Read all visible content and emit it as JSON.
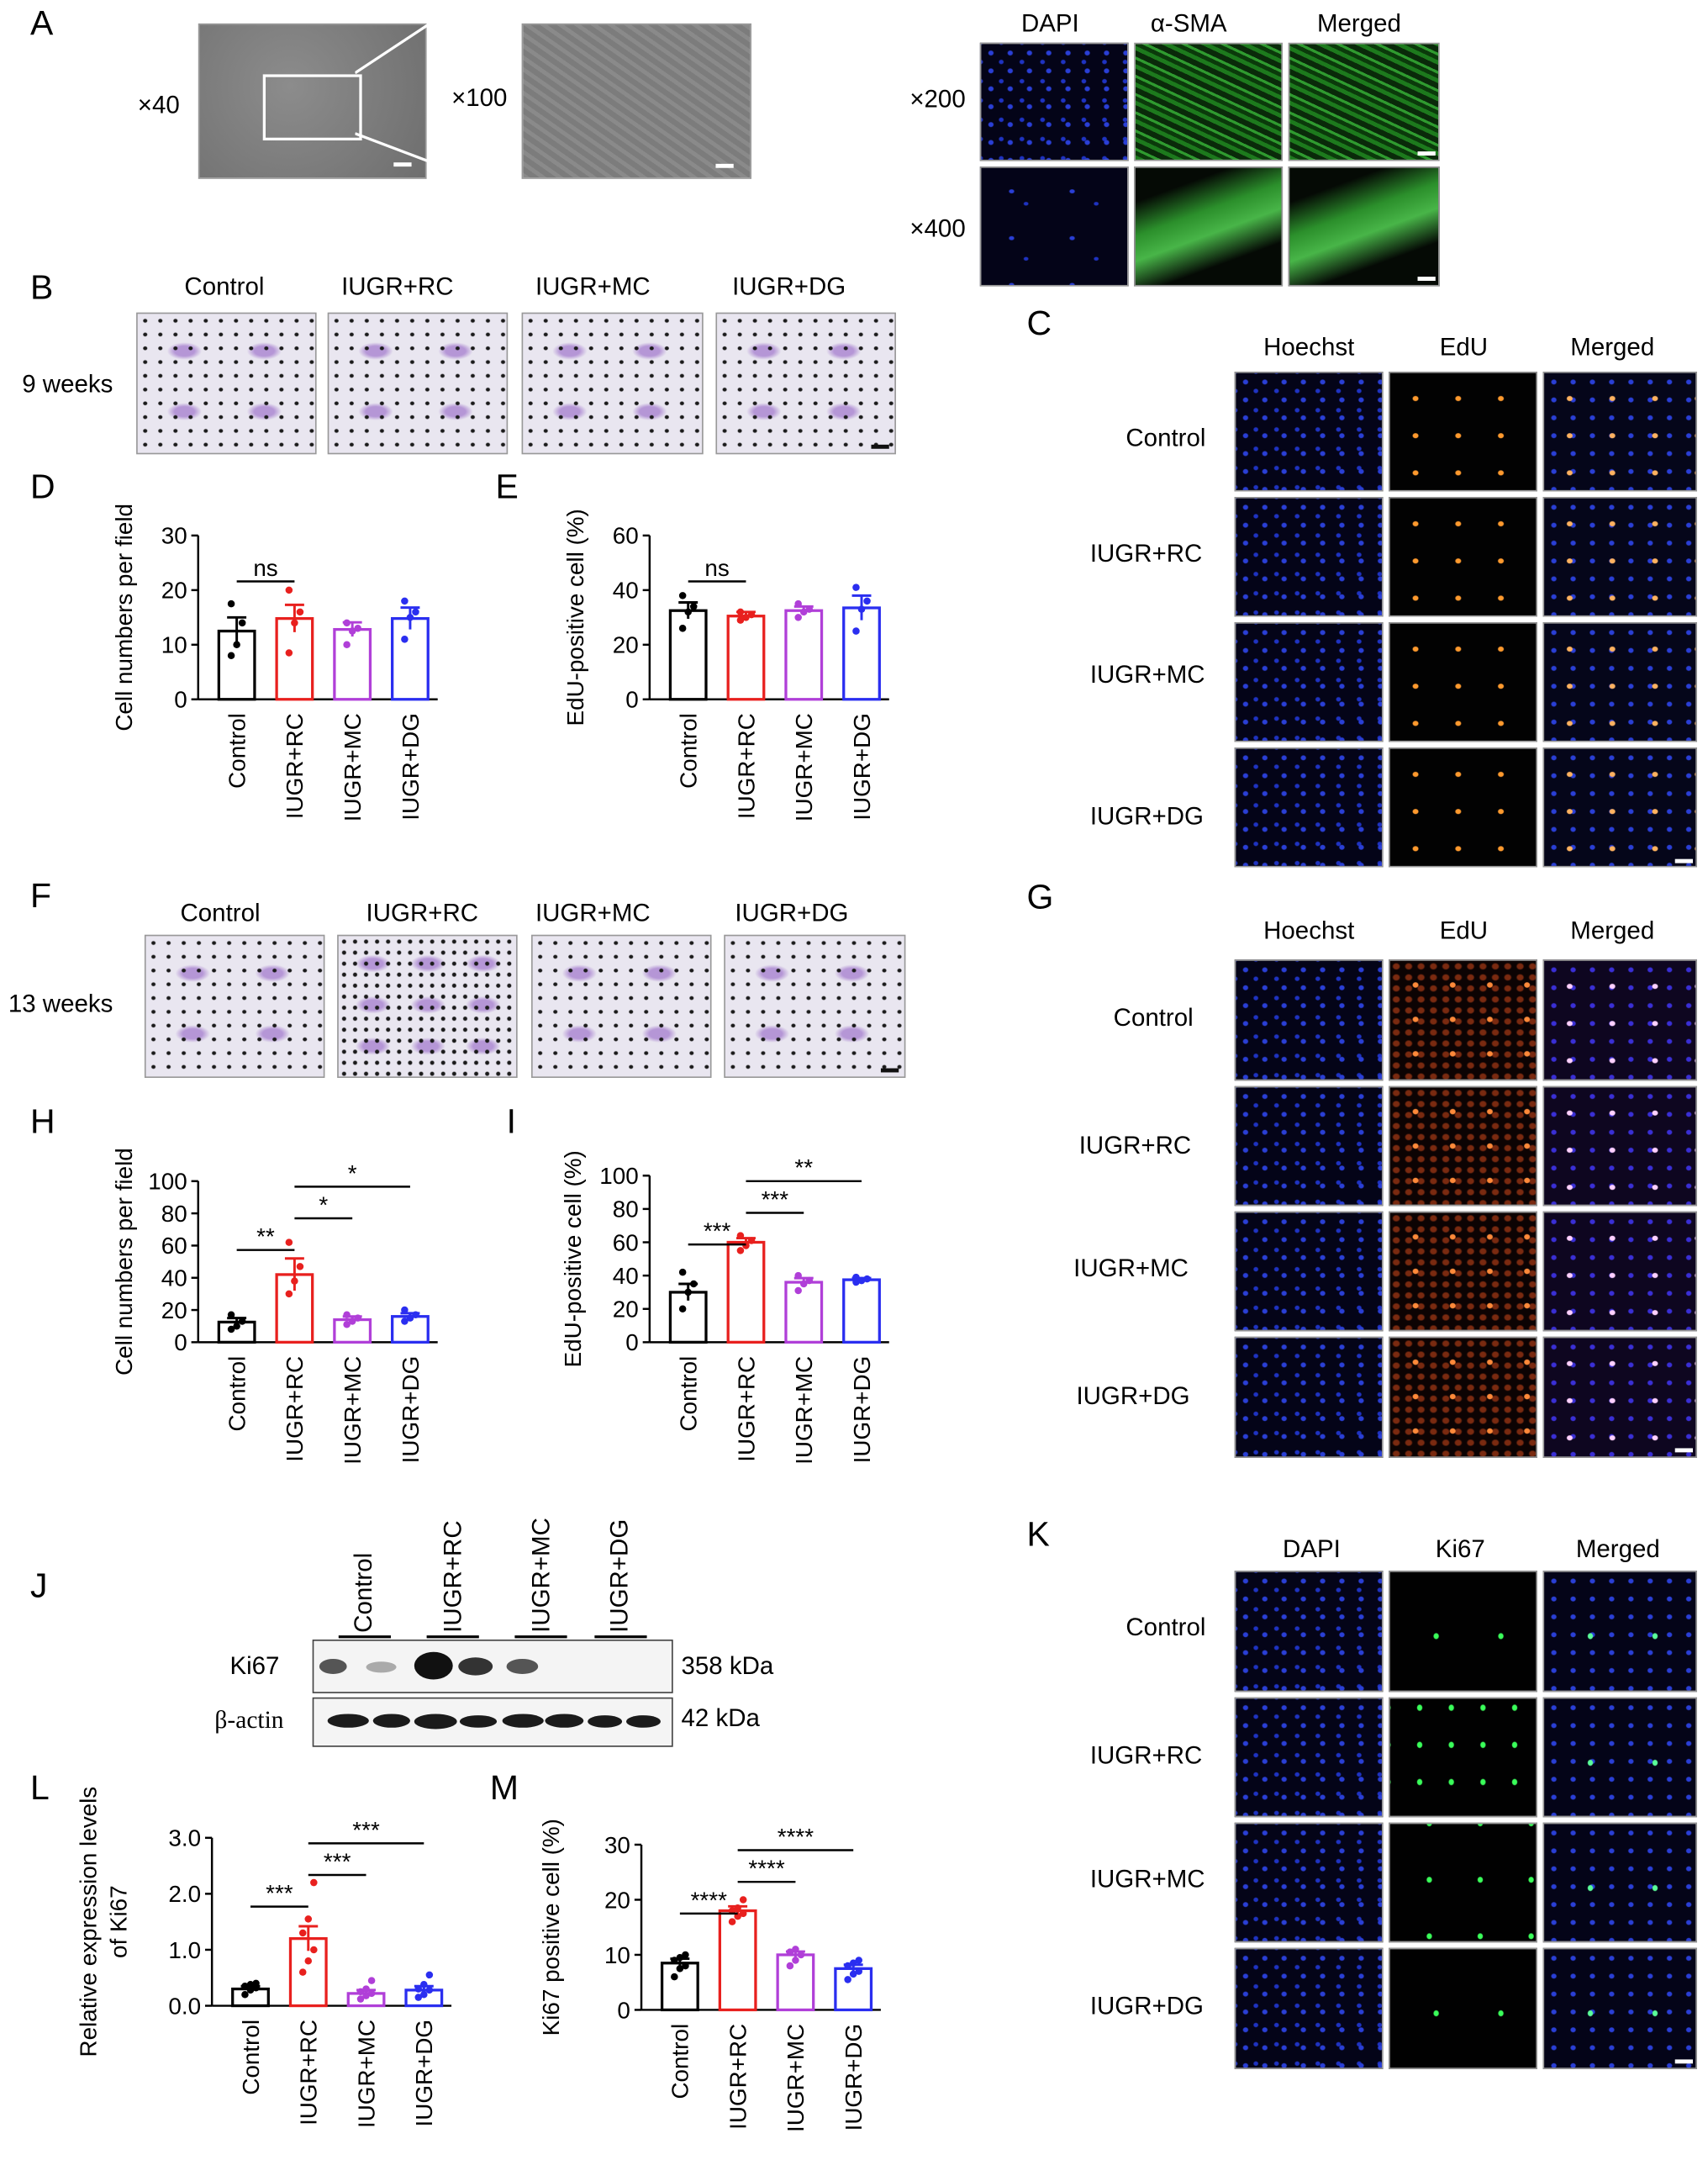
{
  "panels": {
    "A": "A",
    "B": "B",
    "C": "C",
    "D": "D",
    "E": "E",
    "F": "F",
    "G": "G",
    "H": "H",
    "I": "I",
    "J": "J",
    "K": "K",
    "L": "L",
    "M": "M"
  },
  "panelA": {
    "mag_low": "×40",
    "mag_high": "×100",
    "if_headers": [
      "DAPI",
      "α-SMA",
      "Merged"
    ],
    "if_rows": [
      "×200",
      "×400"
    ]
  },
  "groups": [
    "Control",
    "IUGR+RC",
    "IUGR+MC",
    "IUGR+DG"
  ],
  "time_b": "9 weeks",
  "time_f": "13 weeks",
  "edu_headers": [
    "Hoechst",
    "EdU",
    "Merged"
  ],
  "ki67_headers": [
    "DAPI",
    "Ki67",
    "Merged"
  ],
  "blot": {
    "rows": [
      "Ki67",
      "β-actin"
    ],
    "sizes": [
      "358 kDa",
      "42 kDa"
    ]
  },
  "colors": {
    "control": "#000000",
    "rc": "#e8201e",
    "mc": "#b03fd8",
    "dg": "#2a2ef0"
  },
  "chart_data": [
    {
      "panel": "D",
      "type": "bar",
      "ylabel": "Cell numbers per field",
      "categories": [
        "Control",
        "IUGR+RC",
        "IUGR+MC",
        "IUGR+DG"
      ],
      "values": [
        12.5,
        14.8,
        12.8,
        14.8
      ],
      "errors": [
        2.5,
        2.5,
        1.3,
        2.0
      ],
      "points": [
        [
          8,
          10,
          14,
          17.5
        ],
        [
          8.5,
          14,
          16,
          20
        ],
        [
          10,
          12.5,
          13,
          14
        ],
        [
          11,
          15,
          16,
          18
        ]
      ],
      "ylim": [
        0,
        30
      ],
      "yticks": [
        "0",
        "10",
        "20",
        "30"
      ],
      "annotations": [
        {
          "from": 0,
          "to": 1,
          "text": "ns"
        }
      ]
    },
    {
      "panel": "E",
      "type": "bar",
      "ylabel": "EdU-positive cell (%)",
      "categories": [
        "Control",
        "IUGR+RC",
        "IUGR+MC",
        "IUGR+DG"
      ],
      "values": [
        32.5,
        30.5,
        32.5,
        33.5
      ],
      "errors": [
        3,
        1.5,
        1.5,
        4.5
      ],
      "points": [
        [
          26,
          32,
          34,
          38
        ],
        [
          29,
          30,
          31,
          32
        ],
        [
          30,
          32,
          33,
          35
        ],
        [
          25,
          33,
          36,
          41
        ]
      ],
      "ylim": [
        0,
        60
      ],
      "yticks": [
        "0",
        "20",
        "40",
        "60"
      ],
      "annotations": [
        {
          "from": 0,
          "to": 1,
          "text": "ns"
        }
      ]
    },
    {
      "panel": "H",
      "type": "bar",
      "ylabel": "Cell numbers per field",
      "categories": [
        "Control",
        "IUGR+RC",
        "IUGR+MC",
        "IUGR+DG"
      ],
      "values": [
        12.5,
        42,
        14,
        16
      ],
      "errors": [
        2.5,
        10,
        2,
        2
      ],
      "points": [
        [
          8,
          10,
          13,
          17
        ],
        [
          30,
          38,
          47,
          62
        ],
        [
          11,
          13,
          15,
          17
        ],
        [
          13,
          15,
          17,
          20
        ]
      ],
      "ylim": [
        0,
        100
      ],
      "yticks": [
        "0",
        "20",
        "40",
        "60",
        "80",
        "100"
      ],
      "annotations": [
        {
          "from": 0,
          "to": 1,
          "text": "**"
        },
        {
          "from": 1,
          "to": 2,
          "text": "*"
        },
        {
          "from": 1,
          "to": 3,
          "text": "*"
        }
      ]
    },
    {
      "panel": "I",
      "type": "bar",
      "ylabel": "EdU-positive cell (%)",
      "categories": [
        "Control",
        "IUGR+RC",
        "IUGR+MC",
        "IUGR+DG"
      ],
      "values": [
        30,
        60,
        36,
        37.5
      ],
      "errors": [
        5,
        2.5,
        2.5,
        1
      ],
      "points": [
        [
          20,
          30,
          35,
          42
        ],
        [
          55,
          58,
          61,
          64
        ],
        [
          31,
          35,
          37,
          40
        ],
        [
          36,
          37,
          38,
          39
        ]
      ],
      "ylim": [
        0,
        100
      ],
      "yticks": [
        "0",
        "20",
        "40",
        "60",
        "80",
        "100"
      ],
      "annotations": [
        {
          "from": 0,
          "to": 1,
          "text": "***"
        },
        {
          "from": 1,
          "to": 2,
          "text": "***"
        },
        {
          "from": 1,
          "to": 3,
          "text": "**"
        }
      ]
    },
    {
      "panel": "L",
      "type": "bar",
      "ylabel": "Relative expression levels of Ki67",
      "categories": [
        "Control",
        "IUGR+RC",
        "IUGR+MC",
        "IUGR+DG"
      ],
      "values": [
        0.3,
        1.2,
        0.22,
        0.28
      ],
      "errors": [
        0.05,
        0.22,
        0.06,
        0.07
      ],
      "points": [
        [
          0.2,
          0.28,
          0.32,
          0.35,
          0.38,
          0.4
        ],
        [
          0.6,
          0.8,
          1.0,
          1.3,
          1.55,
          2.2
        ],
        [
          0.12,
          0.18,
          0.22,
          0.25,
          0.3,
          0.45
        ],
        [
          0.15,
          0.2,
          0.28,
          0.3,
          0.38,
          0.55
        ]
      ],
      "ylim": [
        0,
        3.0
      ],
      "yticks": [
        "0.0",
        "1.0",
        "2.0",
        "3.0"
      ],
      "annotations": [
        {
          "from": 0,
          "to": 1,
          "text": "***"
        },
        {
          "from": 1,
          "to": 2,
          "text": "***"
        },
        {
          "from": 1,
          "to": 3,
          "text": "***"
        }
      ]
    },
    {
      "panel": "M",
      "type": "bar",
      "ylabel": "Ki67 positive cell (%)",
      "categories": [
        "Control",
        "IUGR+RC",
        "IUGR+MC",
        "IUGR+DG"
      ],
      "values": [
        8.5,
        18,
        10,
        7.5
      ],
      "errors": [
        0.8,
        0.8,
        0.6,
        0.7
      ],
      "points": [
        [
          6,
          7.5,
          8,
          9,
          9.5,
          10
        ],
        [
          16,
          17,
          17.5,
          18,
          18.5,
          20
        ],
        [
          8,
          9,
          10,
          10.5,
          11
        ],
        [
          5.5,
          6.5,
          7,
          8,
          8.5,
          9
        ]
      ],
      "ylim": [
        0,
        30
      ],
      "yticks": [
        "0",
        "10",
        "20",
        "30"
      ],
      "annotations": [
        {
          "from": 0,
          "to": 1,
          "text": "****"
        },
        {
          "from": 1,
          "to": 2,
          "text": "****"
        },
        {
          "from": 1,
          "to": 3,
          "text": "****"
        }
      ]
    }
  ]
}
